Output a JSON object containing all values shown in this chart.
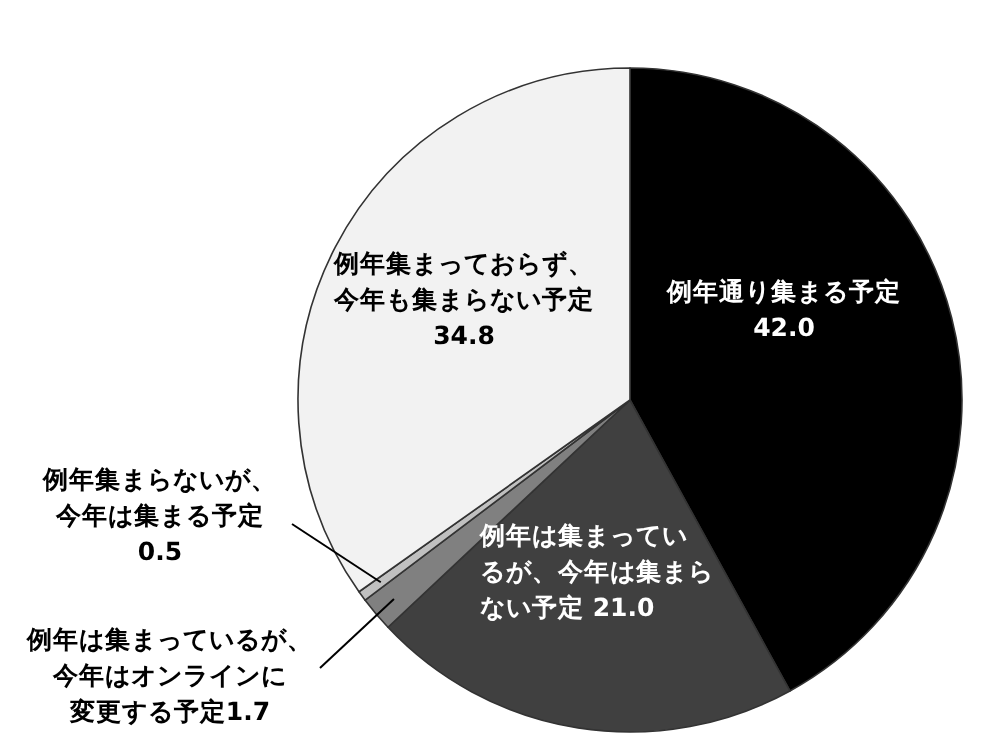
{
  "chart_data": {
    "type": "pie",
    "categories": [
      "例年通り集まる予定",
      "例年は集まっているが、今年は集まらない予定",
      "例年は集まっているが、今年はオンラインに変更する予定",
      "例年集まらないが、今年は集まる予定",
      "例年集まっておらず、今年も集まらない予定"
    ],
    "values": [
      42.0,
      21.0,
      1.7,
      0.5,
      34.8
    ],
    "value_labels": [
      "42.0",
      "21.0",
      "1.7",
      "0.5",
      "34.8"
    ],
    "colors": [
      "#000000",
      "#404040",
      "#808080",
      "#c0c0c0",
      "#f2f2f2"
    ]
  }
}
